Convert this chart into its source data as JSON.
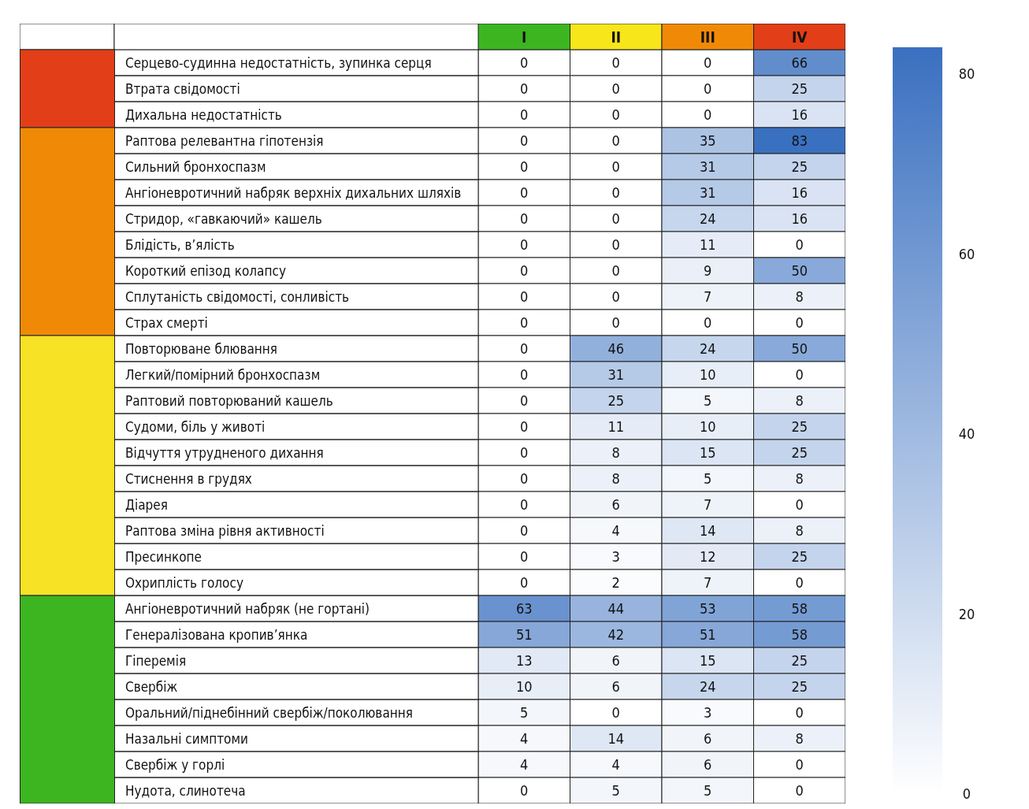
{
  "chart_data": {
    "type": "heatmap",
    "categories": [
      "I",
      "II",
      "III",
      "IV"
    ],
    "y_categories": [
      "Серцево-судинна недостатність, зупинка серця",
      "Втрата свідомості",
      "Дихальна недостатність",
      "Раптова релевантна гіпотензія",
      "Сильний бронхоспазм",
      "Ангіоневротичний набряк верхніх дихальних шляхів",
      "Стридор, «гавкаючий» кашель",
      "Блідість, в’ялість",
      "Короткий епізод колапсу",
      "Сплутаність свідомості, сонливість",
      "Страх смерті",
      "Повторюване блювання",
      "Легкий/помірний бронхоспазм",
      "Раптовий повторюваний кашель",
      "Судоми, біль у животі",
      "Відчуття утрудненого дихання",
      "Стиснення в грудях",
      "Діарея",
      "Раптова зміна рівня активності",
      "Пресинкопе",
      "Охриплість голосу",
      "Ангіоневротичний набряк (не гортані)",
      "Генералізована кропив’янка",
      "Гіперемія",
      "Свербіж",
      "Оральний/піднебінний свербіж/поколювання",
      "Назальні симптоми",
      "Свербіж у горлі",
      "Нудота, слинотеча"
    ],
    "cells": [
      [
        0,
        0,
        0,
        66
      ],
      [
        0,
        0,
        0,
        25
      ],
      [
        0,
        0,
        0,
        16
      ],
      [
        0,
        0,
        35,
        83
      ],
      [
        0,
        0,
        31,
        25
      ],
      [
        0,
        0,
        31,
        16
      ],
      [
        0,
        0,
        24,
        16
      ],
      [
        0,
        0,
        11,
        0
      ],
      [
        0,
        0,
        9,
        50
      ],
      [
        0,
        0,
        7,
        8
      ],
      [
        0,
        0,
        0,
        0
      ],
      [
        0,
        46,
        24,
        50
      ],
      [
        0,
        31,
        10,
        0
      ],
      [
        0,
        25,
        5,
        8
      ],
      [
        0,
        11,
        10,
        25
      ],
      [
        0,
        8,
        15,
        25
      ],
      [
        0,
        8,
        5,
        8
      ],
      [
        0,
        6,
        7,
        0
      ],
      [
        0,
        4,
        14,
        8
      ],
      [
        0,
        3,
        12,
        25
      ],
      [
        0,
        2,
        7,
        0
      ],
      [
        63,
        44,
        53,
        58
      ],
      [
        51,
        42,
        51,
        58
      ],
      [
        13,
        6,
        15,
        25
      ],
      [
        10,
        6,
        24,
        25
      ],
      [
        5,
        0,
        3,
        0
      ],
      [
        4,
        14,
        6,
        8
      ],
      [
        4,
        4,
        6,
        0
      ],
      [
        0,
        5,
        5,
        0
      ]
    ],
    "colors": [
      "#ffffff",
      "#3a70c0"
    ],
    "clim": [
      0,
      83
    ],
    "cticks": [
      0,
      20,
      40,
      60,
      80
    ],
    "data_labels": true
  }
}
